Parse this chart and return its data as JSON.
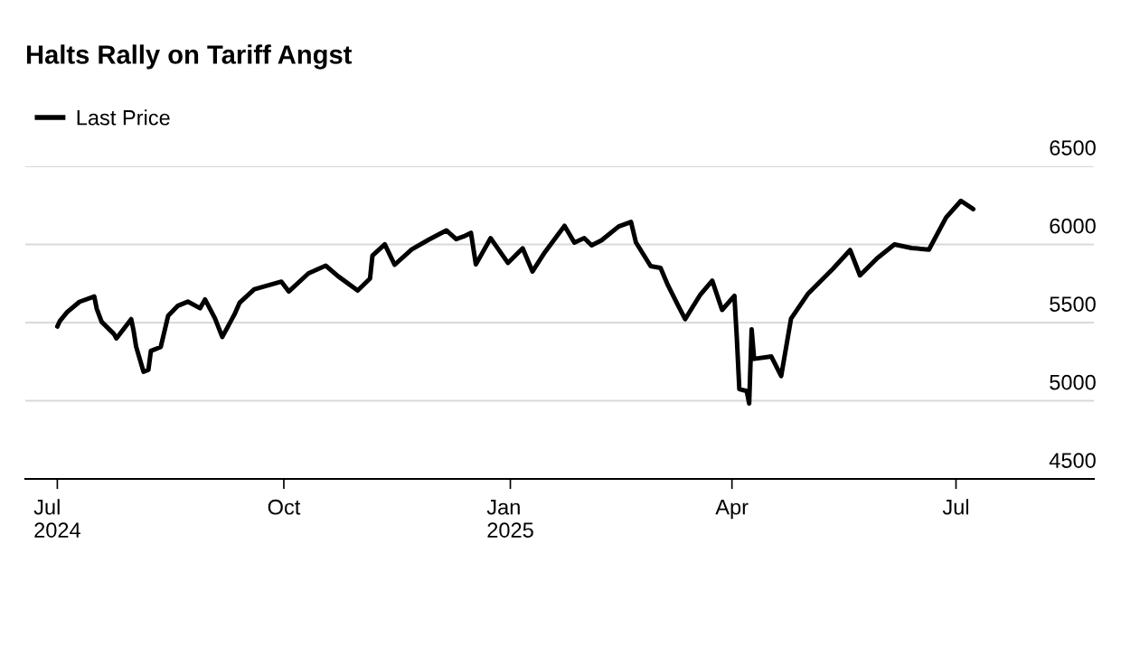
{
  "chart_data": {
    "type": "line",
    "title": "Halts Rally on Tariff Angst",
    "legend": "top left",
    "grid": "y",
    "line_style": "solid",
    "marker": "none",
    "xlim": [
      "2024-06-18",
      "2025-08-26"
    ],
    "ylim": [
      4500,
      6500
    ],
    "yticks": [
      4500,
      5000,
      5500,
      6000,
      6500
    ],
    "xticks": [
      {
        "value": "2024-07-01",
        "label": "Jul\n2024"
      },
      {
        "value": "2024-10-01",
        "label": "Oct"
      },
      {
        "value": "2025-01-01",
        "label": "Jan\n2025"
      },
      {
        "value": "2025-04-01",
        "label": "Apr"
      },
      {
        "value": "2025-07-01",
        "label": "Jul"
      }
    ],
    "series": [
      {
        "name": "Last Price",
        "color": "#000000",
        "x": [
          "2024-07-01",
          "2024-07-02",
          "2024-07-05",
          "2024-07-10",
          "2024-07-16",
          "2024-07-17",
          "2024-07-19",
          "2024-07-24",
          "2024-07-25",
          "2024-07-31",
          "2024-08-01",
          "2024-08-02",
          "2024-08-05",
          "2024-08-07",
          "2024-08-08",
          "2024-08-12",
          "2024-08-15",
          "2024-08-19",
          "2024-08-23",
          "2024-08-28",
          "2024-08-30",
          "2024-09-03",
          "2024-09-06",
          "2024-09-11",
          "2024-09-13",
          "2024-09-19",
          "2024-09-30",
          "2024-10-03",
          "2024-10-11",
          "2024-10-18",
          "2024-10-23",
          "2024-10-31",
          "2024-11-05",
          "2024-11-06",
          "2024-11-11",
          "2024-11-15",
          "2024-11-22",
          "2024-11-29",
          "2024-12-06",
          "2024-12-10",
          "2024-12-13",
          "2024-12-16",
          "2024-12-18",
          "2024-12-24",
          "2024-12-31",
          "2025-01-06",
          "2025-01-10",
          "2025-01-15",
          "2025-01-23",
          "2025-01-27",
          "2025-01-31",
          "2025-02-03",
          "2025-02-07",
          "2025-02-14",
          "2025-02-19",
          "2025-02-21",
          "2025-02-27",
          "2025-03-03",
          "2025-03-06",
          "2025-03-10",
          "2025-03-13",
          "2025-03-19",
          "2025-03-24",
          "2025-03-28",
          "2025-04-02",
          "2025-04-03",
          "2025-04-04",
          "2025-04-07",
          "2025-04-08",
          "2025-04-09",
          "2025-04-10",
          "2025-04-17",
          "2025-04-21",
          "2025-04-25",
          "2025-05-02",
          "2025-05-12",
          "2025-05-19",
          "2025-05-23",
          "2025-05-30",
          "2025-06-06",
          "2025-06-13",
          "2025-06-20",
          "2025-06-27",
          "2025-07-03",
          "2025-07-08"
        ],
        "values": [
          5475,
          5509,
          5567,
          5633,
          5667,
          5589,
          5505,
          5427,
          5399,
          5522,
          5446,
          5346,
          5186,
          5199,
          5319,
          5344,
          5543,
          5608,
          5634,
          5592,
          5648,
          5528,
          5408,
          5554,
          5626,
          5713,
          5762,
          5699,
          5815,
          5864,
          5797,
          5705,
          5782,
          5929,
          6001,
          5870,
          5969,
          6032,
          6090,
          6034,
          6051,
          6074,
          5872,
          6040,
          5882,
          5975,
          5827,
          5950,
          6119,
          6012,
          6040,
          5994,
          6026,
          6115,
          6144,
          6013,
          5861,
          5850,
          5739,
          5614,
          5522,
          5675,
          5768,
          5581,
          5671,
          5396,
          5074,
          5062,
          4983,
          5457,
          5268,
          5283,
          5158,
          5525,
          5687,
          5844,
          5964,
          5802,
          5912,
          6000,
          5977,
          5967,
          6173,
          6279,
          6226
        ]
      }
    ]
  }
}
